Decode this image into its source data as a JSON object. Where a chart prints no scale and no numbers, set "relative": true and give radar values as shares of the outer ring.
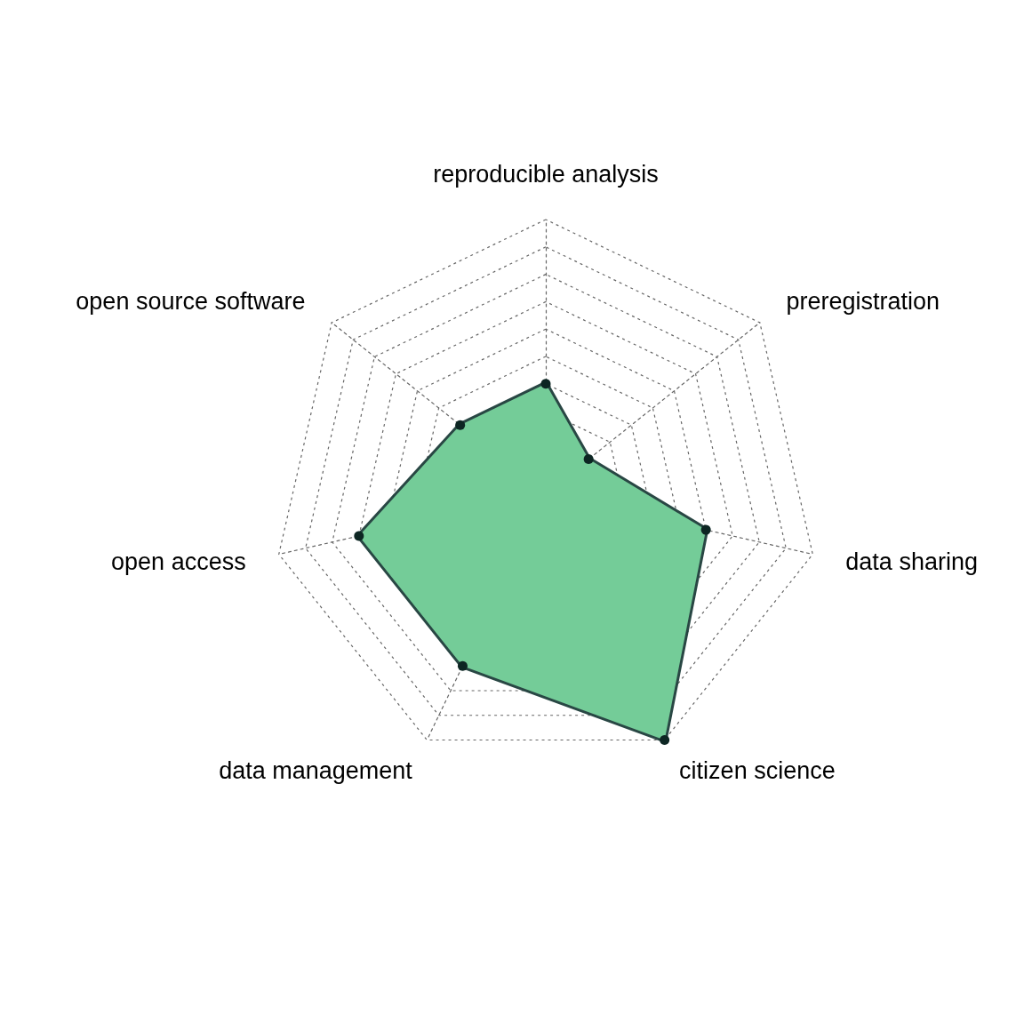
{
  "chart_data": {
    "type": "radar",
    "relative": true,
    "categories": [
      "reproducible analysis",
      "preregistration",
      "data sharing",
      "citizen science",
      "data management",
      "open access",
      "open source software"
    ],
    "series": [
      {
        "color": "#74cc98",
        "values": [
          0.4,
          0.2,
          0.6,
          1.0,
          0.7,
          0.7,
          0.4
        ]
      }
    ],
    "marker": "circle",
    "grid": true
  }
}
